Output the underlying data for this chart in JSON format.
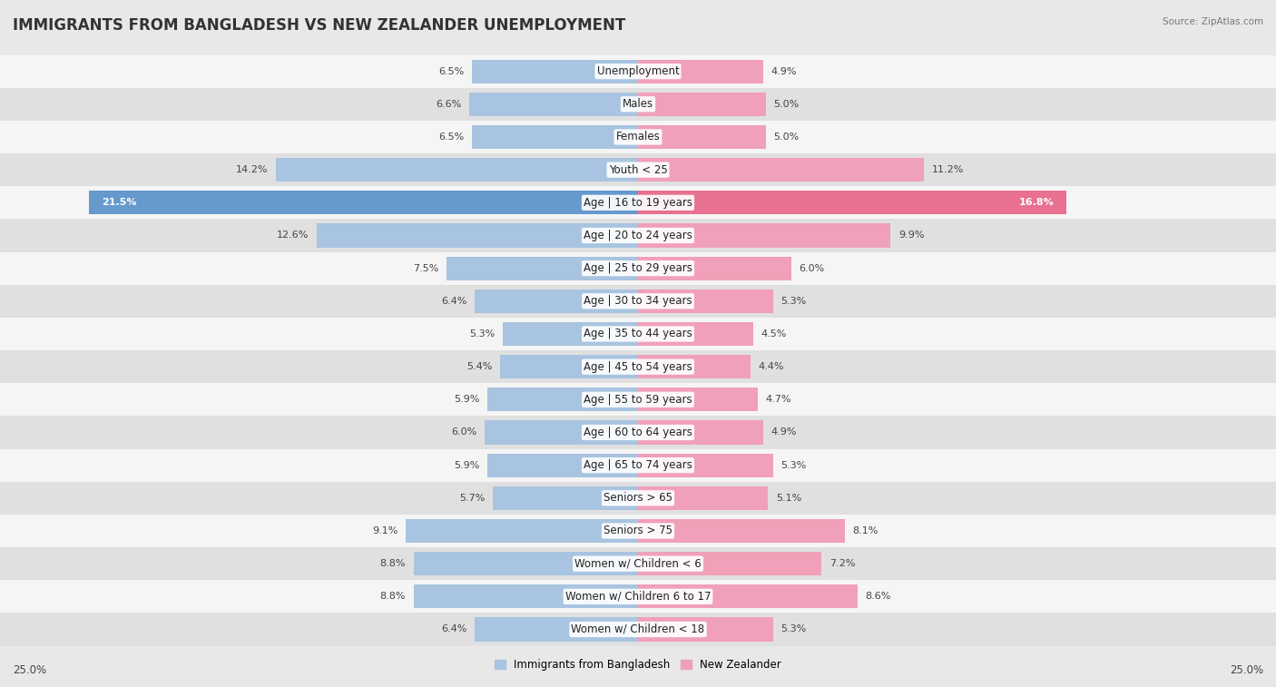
{
  "title": "IMMIGRANTS FROM BANGLADESH VS NEW ZEALANDER UNEMPLOYMENT",
  "source": "Source: ZipAtlas.com",
  "categories": [
    "Unemployment",
    "Males",
    "Females",
    "Youth < 25",
    "Age | 16 to 19 years",
    "Age | 20 to 24 years",
    "Age | 25 to 29 years",
    "Age | 30 to 34 years",
    "Age | 35 to 44 years",
    "Age | 45 to 54 years",
    "Age | 55 to 59 years",
    "Age | 60 to 64 years",
    "Age | 65 to 74 years",
    "Seniors > 65",
    "Seniors > 75",
    "Women w/ Children < 6",
    "Women w/ Children 6 to 17",
    "Women w/ Children < 18"
  ],
  "left_values": [
    6.5,
    6.6,
    6.5,
    14.2,
    21.5,
    12.6,
    7.5,
    6.4,
    5.3,
    5.4,
    5.9,
    6.0,
    5.9,
    5.7,
    9.1,
    8.8,
    8.8,
    6.4
  ],
  "right_values": [
    4.9,
    5.0,
    5.0,
    11.2,
    16.8,
    9.9,
    6.0,
    5.3,
    4.5,
    4.4,
    4.7,
    4.9,
    5.3,
    5.1,
    8.1,
    7.2,
    8.6,
    5.3
  ],
  "left_color": "#a8c4e0",
  "right_color": "#f0a0b8",
  "highlight_left_color": "#6699cc",
  "highlight_right_color": "#e87090",
  "background_color": "#e8e8e8",
  "row_bg_light": "#f5f5f5",
  "row_bg_dark": "#e0e0e0",
  "axis_max": 25.0,
  "legend_left": "Immigrants from Bangladesh",
  "legend_right": "New Zealander",
  "title_fontsize": 12,
  "label_fontsize": 8.5,
  "value_fontsize": 8.0
}
